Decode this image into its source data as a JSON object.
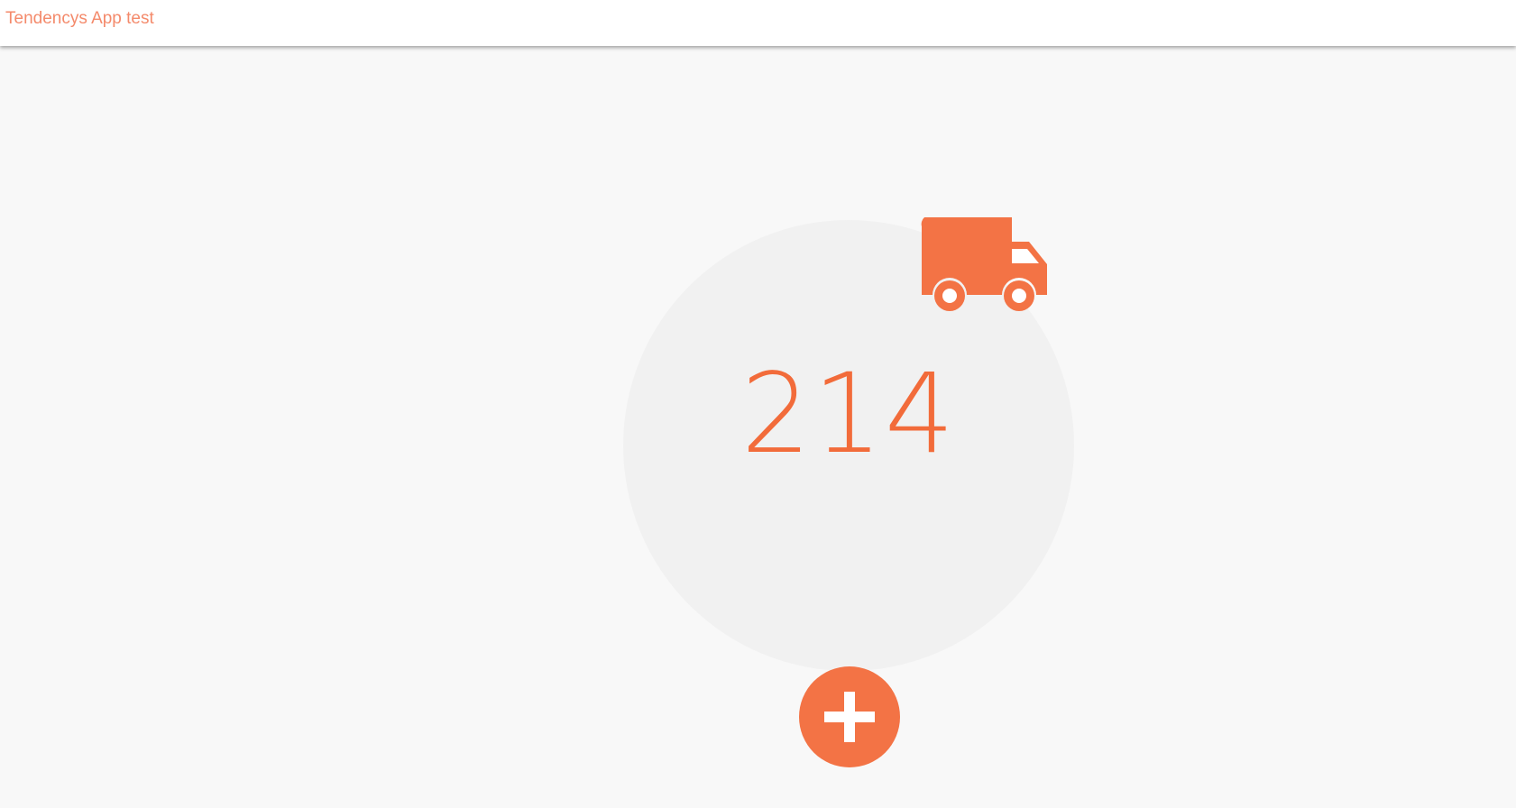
{
  "app": {
    "title": "Tendencys App test"
  },
  "counter": {
    "value": "214"
  },
  "icons": {
    "delivery": "truck-icon",
    "add": "plus-icon"
  },
  "colors": {
    "accent": "#f37345",
    "title": "#f48a6b",
    "counter_text": "#f26b3a",
    "circle_bg": "#f1f1f1",
    "page_bg": "#f8f8f8"
  }
}
